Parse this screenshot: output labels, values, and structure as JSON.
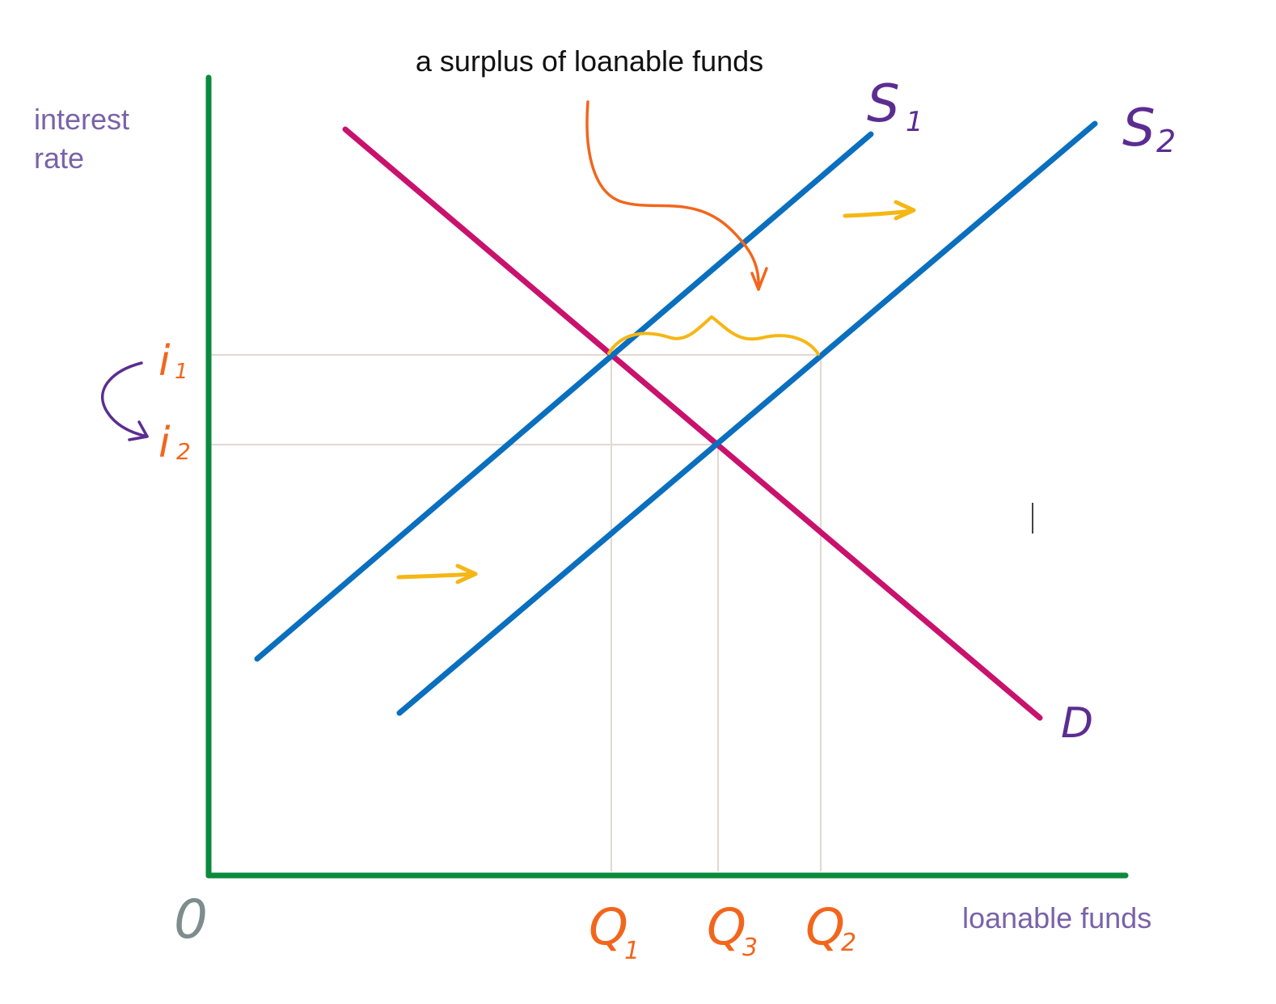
{
  "annotation": {
    "text": "a surplus of loanable funds"
  },
  "axes": {
    "y_label_line1": "interest",
    "y_label_line2": "rate",
    "x_label": "loanable funds",
    "origin_label": "0"
  },
  "curves": {
    "supply1": {
      "label_main": "S",
      "label_sub": "1"
    },
    "supply2": {
      "label_main": "S",
      "label_sub": "2"
    },
    "demand": {
      "label": "D"
    }
  },
  "rates": {
    "i1": {
      "main": "i",
      "sub": "1"
    },
    "i2": {
      "main": "i",
      "sub": "2"
    }
  },
  "quantities": {
    "q1": {
      "main": "Q",
      "sub": "1"
    },
    "q3": {
      "main": "Q",
      "sub": "3"
    },
    "q2": {
      "main": "Q",
      "sub": "2"
    }
  },
  "colors": {
    "axis": "#0b8a3c",
    "supply": "#0a6fbe",
    "demand": "#c8126d",
    "guide": "#e3d8d2",
    "label_purple": "#5b2d91",
    "axis_title": "#7a62a8",
    "quantity_orange": "#f2661c",
    "highlight_yellow": "#f5b715",
    "origin_gray": "#7d8c8c",
    "text_black": "#111111"
  }
}
